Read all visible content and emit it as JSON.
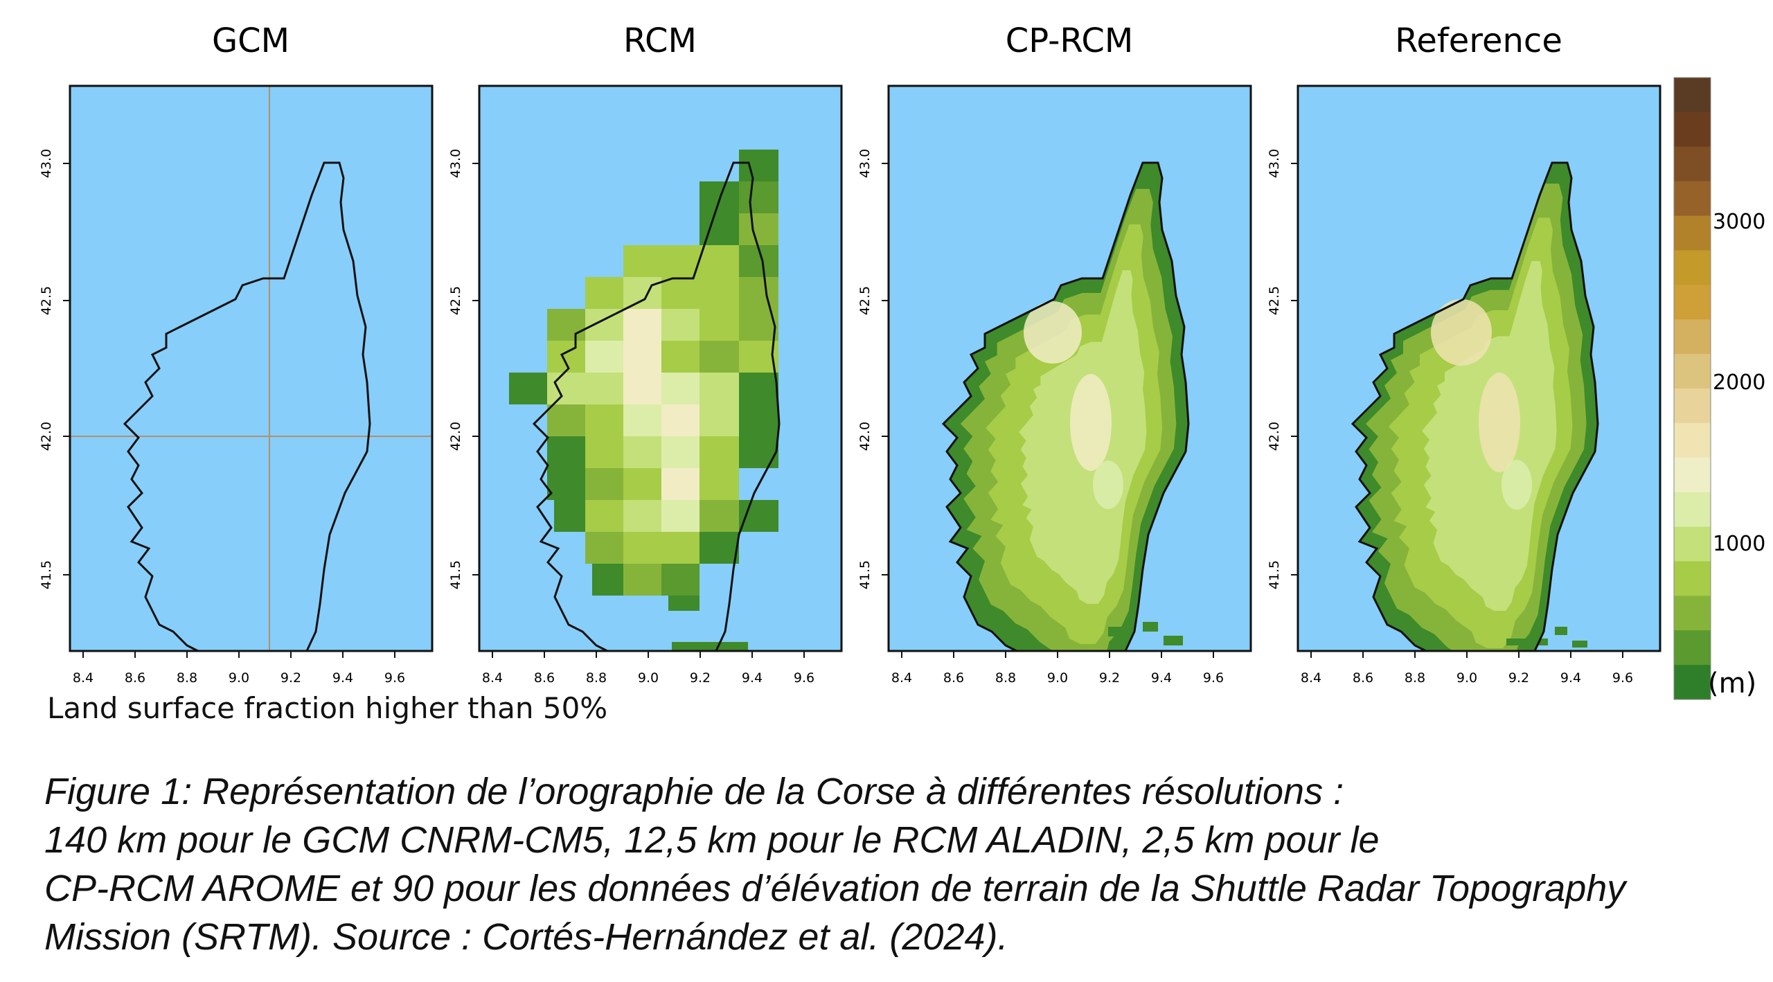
{
  "panels": [
    {
      "title": "GCM"
    },
    {
      "title": "RCM"
    },
    {
      "title": "CP-RCM"
    },
    {
      "title": "Reference"
    }
  ],
  "axes": {
    "lon_ticks": [
      "8.4",
      "8.6",
      "8.8",
      "9.0",
      "9.2",
      "9.4",
      "9.6"
    ],
    "lat_ticks": [
      "43.0",
      "42.5",
      "42.0",
      "41.5"
    ]
  },
  "gcm_note": "Land surface fraction higher than 50%",
  "colorbar": {
    "ticks": [
      "3000",
      "2000",
      "1000"
    ],
    "unit": "(m)",
    "colors": [
      "#2f7f2a",
      "#5a9a2f",
      "#86b43a",
      "#a7cc48",
      "#c4e07a",
      "#dcedaa",
      "#efefc7",
      "#f1e4b3",
      "#e8d49a",
      "#ddc47e",
      "#d4b160",
      "#cf9f38",
      "#c49a2b",
      "#b2822a",
      "#96622a",
      "#7e4e25",
      "#6a3d1f",
      "#5a3b24"
    ]
  },
  "colors": {
    "sea": "#87cefa",
    "land_low": "#3f8a2a",
    "land_mid": "#a6cc4e",
    "land_high": "#f1ecc4"
  },
  "caption": {
    "lines": [
      "Figure 1: Représentation de l’orographie de la Corse à différentes résolutions :",
      "140 km pour le GCM CNRM-CM5, 12,5 km pour le RCM ALADIN, 2,5 km pour le",
      "CP-RCM AROME et 90 pour les données d’élévation de terrain de la Shuttle Radar Topography",
      "Mission (SRTM). Source : Cortés-Hernández et al. (2024)."
    ]
  }
}
